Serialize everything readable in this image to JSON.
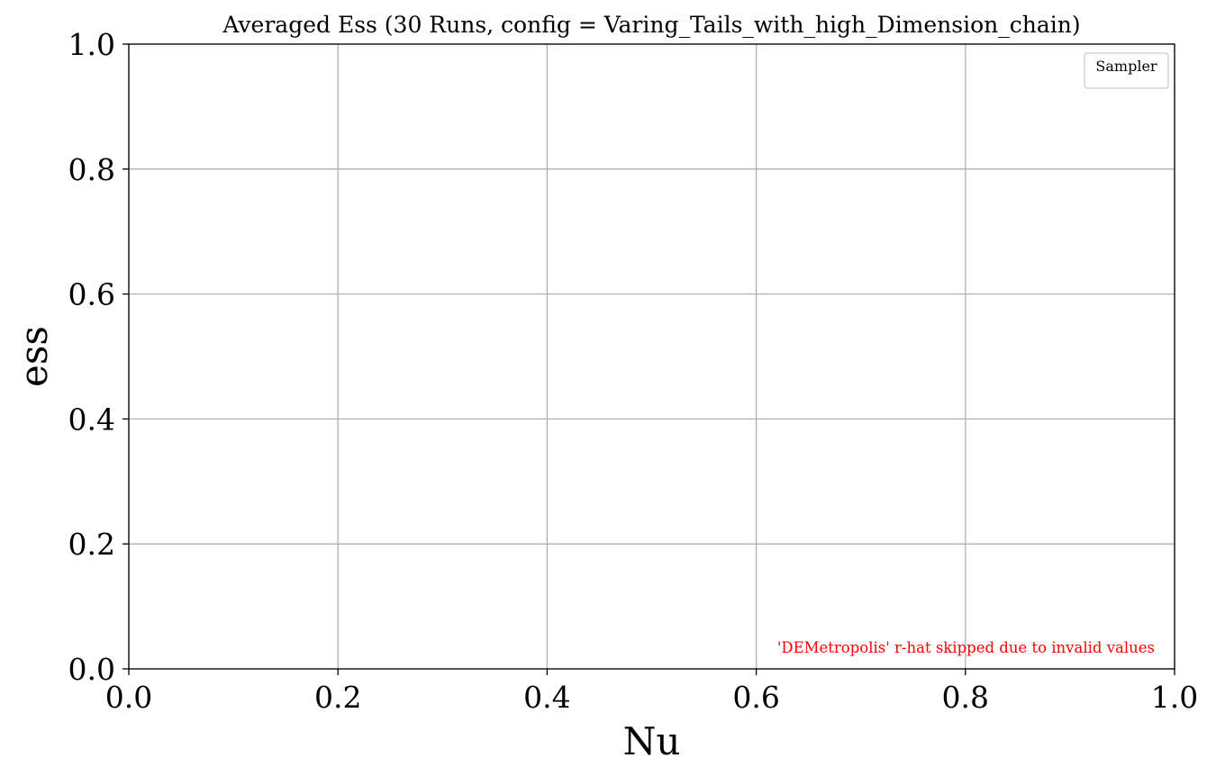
{
  "chart_data": {
    "type": "line",
    "title": "Averaged Ess (30 Runs, config = Varing_Tails_with_high_Dimension_chain)",
    "xlabel": "Nu",
    "ylabel": "ess",
    "xlim": [
      0.0,
      1.0
    ],
    "ylim": [
      0.0,
      1.0
    ],
    "xticks": [
      "0.0",
      "0.2",
      "0.4",
      "0.6",
      "0.8",
      "1.0"
    ],
    "yticks": [
      "0.0",
      "0.2",
      "0.4",
      "0.6",
      "0.8",
      "1.0"
    ],
    "grid": true,
    "series": [],
    "legend": {
      "title": "Sampler",
      "placement": "top-right",
      "entries": []
    },
    "annotation": {
      "text": "'DEMetropolis' r-hat skipped due to invalid values",
      "color": "#ff0000",
      "placement": "bottom-right"
    }
  }
}
